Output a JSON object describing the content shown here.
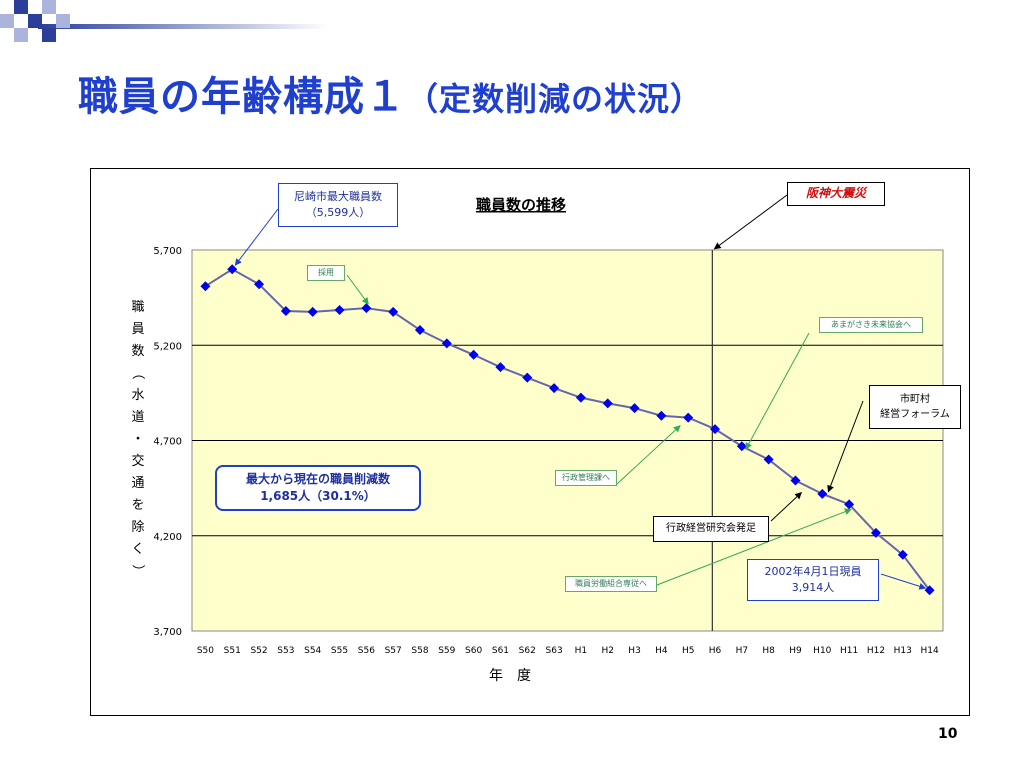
{
  "slide": {
    "title_main": "職員の年齢構成１",
    "title_sub": "（定数削減の状況）",
    "page_number": "10"
  },
  "colors": {
    "title": "#1f3fcf",
    "plot_bg": "#ffffcc",
    "series_line": "#6666aa",
    "marker": "#0000ee",
    "callout_blue": "#1f3fcf",
    "callout_green": "#33aa55",
    "callout_red_text": "#d01010"
  },
  "callouts": {
    "max_staff": [
      "尼崎市最大職員数",
      "（5,599人）"
    ],
    "hanshin": "阪神大震災",
    "saiyo": "採用",
    "amagasaki": "あまがさき未来協会へ",
    "shichoson": [
      "市町村",
      "経営フォーラム"
    ],
    "gyosei_kanri": "行政管理課へ",
    "gyosei_keiei": "行政経営研究会発足",
    "shokuin_roso": "職員労働組合専従へ",
    "current": [
      "2002年4月1日現員",
      "3,914人"
    ],
    "reduction": [
      "最大から現在の職員削減数",
      "1,685人（30.1%）"
    ]
  },
  "chart_data": {
    "type": "line",
    "title": "職員数の推移",
    "xlabel": "年　度",
    "ylabel": "職員数（水道・交通を除く）",
    "ylim": [
      3700,
      5700
    ],
    "yticks": [
      3700,
      4200,
      4700,
      5200,
      5700
    ],
    "ytick_labels": [
      "3,700",
      "4,200",
      "4,700",
      "5,200",
      "5,700"
    ],
    "grid": true,
    "categories": [
      "S50",
      "S51",
      "S52",
      "S53",
      "S54",
      "S55",
      "S56",
      "S57",
      "S58",
      "S59",
      "S60",
      "S61",
      "S62",
      "S63",
      "H1",
      "H2",
      "H3",
      "H4",
      "H5",
      "H6",
      "H7",
      "H8",
      "H9",
      "H10",
      "H11",
      "H12",
      "H13",
      "H14"
    ],
    "values": [
      5510,
      5599,
      5520,
      5380,
      5375,
      5385,
      5395,
      5375,
      5280,
      5210,
      5150,
      5085,
      5030,
      4975,
      4925,
      4895,
      4870,
      4830,
      4820,
      4760,
      4670,
      4600,
      4490,
      4420,
      4365,
      4215,
      4100,
      3914
    ],
    "vline_category": "H6"
  }
}
